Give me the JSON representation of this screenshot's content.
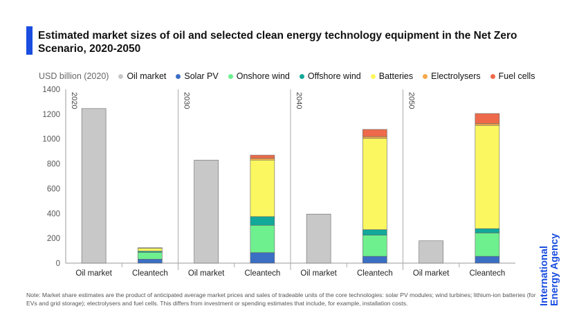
{
  "title": "Estimated market sizes of oil and selected clean energy technology equipment in the Net Zero Scenario, 2020-2050",
  "legend": {
    "unit_label": "USD billion (2020)",
    "items": [
      {
        "label": "Oil market",
        "color": "#c8c8c8"
      },
      {
        "label": "Solar PV",
        "color": "#3b6fc4"
      },
      {
        "label": "Onshore wind",
        "color": "#6ef08f"
      },
      {
        "label": "Offshore wind",
        "color": "#12a89a"
      },
      {
        "label": "Batteries",
        "color": "#fbf760"
      },
      {
        "label": "Electrolysers",
        "color": "#f5a94a"
      },
      {
        "label": "Fuel cells",
        "color": "#ee6a4a"
      }
    ]
  },
  "chart_data": {
    "type": "bar",
    "stacked": true,
    "ylim": [
      0,
      1400
    ],
    "yticks": [
      0,
      200,
      400,
      600,
      800,
      1000,
      1200,
      1400
    ],
    "grid": false,
    "legend_position": "top",
    "groups": [
      {
        "label": "2020",
        "bars": [
          {
            "label": "Oil market",
            "segments": {
              "Oil market": 1245
            }
          },
          {
            "label": "Cleantech",
            "segments": {
              "Solar PV": 32,
              "Onshore wind": 55,
              "Offshore wind": 10,
              "Batteries": 25,
              "Electrolysers": 1,
              "Fuel cells": 1
            }
          }
        ]
      },
      {
        "label": "2030",
        "bars": [
          {
            "label": "Oil market",
            "segments": {
              "Oil market": 830
            }
          },
          {
            "label": "Cleantech",
            "segments": {
              "Solar PV": 85,
              "Onshore wind": 220,
              "Offshore wind": 70,
              "Batteries": 455,
              "Electrolysers": 15,
              "Fuel cells": 25
            }
          }
        ]
      },
      {
        "label": "2040",
        "bars": [
          {
            "label": "Oil market",
            "segments": {
              "Oil market": 395
            }
          },
          {
            "label": "Cleantech",
            "segments": {
              "Solar PV": 55,
              "Onshore wind": 170,
              "Offshore wind": 45,
              "Batteries": 735,
              "Electrolysers": 15,
              "Fuel cells": 57
            }
          }
        ]
      },
      {
        "label": "2050",
        "bars": [
          {
            "label": "Oil market",
            "segments": {
              "Oil market": 180
            }
          },
          {
            "label": "Cleantech",
            "segments": {
              "Solar PV": 55,
              "Onshore wind": 188,
              "Offshore wind": 35,
              "Batteries": 832,
              "Electrolysers": 15,
              "Fuel cells": 80
            }
          }
        ]
      }
    ]
  },
  "note": "Note: Market share estimates are the product of anticipated average market prices and sales of tradeable units of the core technologies: solar PV modules; wind turbines; lithium-ion batteries (for EVs and grid storage); electrolysers and fuel cells. This differs from investment or spending estimates that include, for example, installation costs.",
  "logo": {
    "line1": "International",
    "line2": "Energy Agency"
  }
}
